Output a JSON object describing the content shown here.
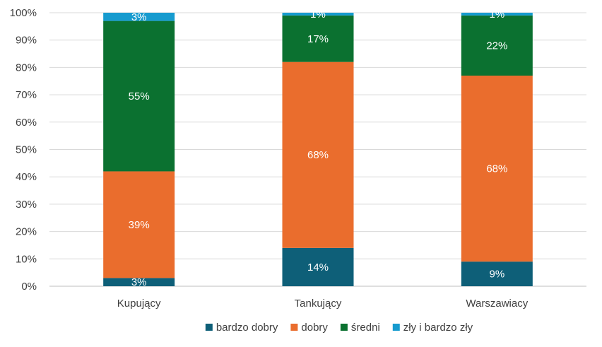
{
  "chart_data": {
    "type": "bar",
    "stacked": true,
    "categories": [
      "Kupujący",
      "Tankujący",
      "Warszawiacy"
    ],
    "series": [
      {
        "name": "bardzo dobry",
        "color": "#0e5f78",
        "values": [
          3,
          14,
          9
        ],
        "labels": [
          "3%",
          "14%",
          "9%"
        ]
      },
      {
        "name": "dobry",
        "color": "#ea6d2d",
        "values": [
          39,
          68,
          68
        ],
        "labels": [
          "39%",
          "68%",
          "68%"
        ]
      },
      {
        "name": "średni",
        "color": "#0b7130",
        "values": [
          55,
          17,
          22
        ],
        "labels": [
          "55%",
          "17%",
          "22%"
        ]
      },
      {
        "name": "zły i bardzo zły",
        "color": "#169bcf",
        "values": [
          3,
          1,
          1
        ],
        "labels": [
          "3%",
          "1%",
          "1%"
        ]
      }
    ],
    "y_ticks": [
      "0%",
      "10%",
      "20%",
      "30%",
      "40%",
      "50%",
      "60%",
      "70%",
      "80%",
      "90%",
      "100%"
    ],
    "ylim": [
      0,
      100
    ],
    "grid": true,
    "legend_position": "bottom",
    "title": "",
    "xlabel": "",
    "ylabel": ""
  }
}
